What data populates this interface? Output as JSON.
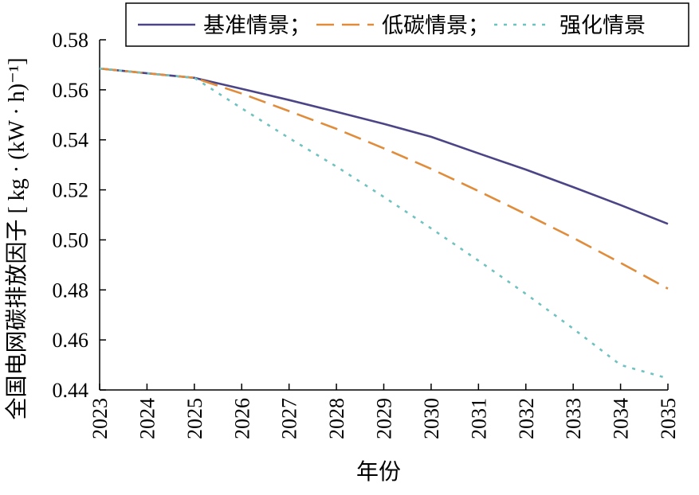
{
  "chart_data": {
    "type": "line",
    "title": "",
    "xlabel": "年份",
    "ylabel": "全国电网碳排放因子 [ kg · (kW · h)⁻¹]",
    "x": [
      2023,
      2024,
      2025,
      2026,
      2027,
      2028,
      2029,
      2030,
      2031,
      2032,
      2033,
      2034,
      2035
    ],
    "xlim": [
      2023,
      2035
    ],
    "ylim": [
      0.44,
      0.58
    ],
    "yticks": [
      "0.44",
      "0.46",
      "0.48",
      "0.50",
      "0.52",
      "0.54",
      "0.56",
      "0.58"
    ],
    "grid": false,
    "legend_position": "top",
    "series": [
      {
        "name": "基准情景；",
        "color": "#4b4587",
        "dash": "solid",
        "values": [
          0.5685,
          0.5666,
          0.5648,
          0.5604,
          0.5559,
          0.5512,
          0.5464,
          0.5412,
          0.5346,
          0.5281,
          0.5211,
          0.5139,
          0.5064
        ]
      },
      {
        "name": "低碳情景；",
        "color": "#e08c3a",
        "dash": "dashed",
        "values": [
          0.5685,
          0.5666,
          0.5648,
          0.5585,
          0.5515,
          0.5444,
          0.5366,
          0.5284,
          0.5195,
          0.5103,
          0.5008,
          0.4908,
          0.4805
        ]
      },
      {
        "name": "强化情景",
        "color": "#6ec2bf",
        "dash": "dotted",
        "values": [
          0.5685,
          0.5666,
          0.5648,
          0.5526,
          0.5407,
          0.5293,
          0.5172,
          0.5046,
          0.4917,
          0.4784,
          0.4645,
          0.45,
          0.4446
        ]
      }
    ]
  }
}
